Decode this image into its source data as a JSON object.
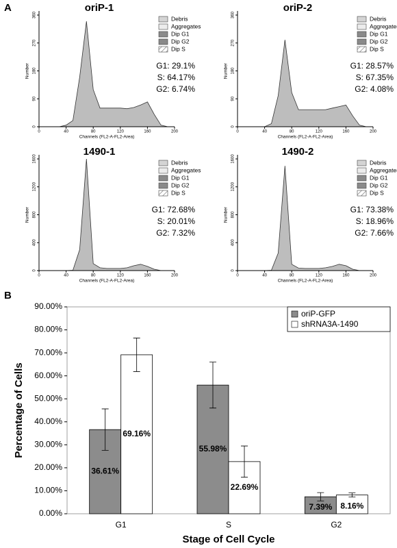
{
  "panel_labels": [
    "A",
    "B"
  ],
  "chart_data": [
    {
      "type": "area",
      "title": "oriP-1",
      "xlabel": "Channels (FL2-A-FL2-Area)",
      "ylabel": "Number",
      "x": [
        0,
        10,
        20,
        30,
        40,
        50,
        60,
        70,
        80,
        90,
        100,
        110,
        120,
        130,
        140,
        150,
        160,
        170,
        180,
        190,
        200
      ],
      "values": [
        0,
        0,
        0,
        0,
        5,
        20,
        160,
        340,
        120,
        60,
        60,
        60,
        60,
        58,
        62,
        70,
        80,
        40,
        5,
        0,
        0
      ],
      "xlim": [
        0,
        200
      ],
      "xticks": [
        0,
        40,
        80,
        120,
        160,
        200
      ],
      "ylim": [
        0,
        360
      ],
      "yticks": [
        0,
        90,
        180,
        270,
        360
      ],
      "legend": [
        {
          "name": "Debris",
          "color": "#d4d4d4"
        },
        {
          "name": "Aggregates",
          "color": "#ececec"
        },
        {
          "name": "Dip G1",
          "color": "#8a8a8a"
        },
        {
          "name": "Dip G2",
          "color": "#8a8a8a"
        },
        {
          "name": "Dip S",
          "color": "#ffffff",
          "pattern": "hatch"
        }
      ],
      "stats": [
        "G1: 29.1%",
        "S: 64.17%",
        "G2: 6.74%"
      ]
    },
    {
      "type": "area",
      "title": "oriP-2",
      "xlabel": "Channels (FL2-A-FL2-Area)",
      "ylabel": "Number",
      "x": [
        0,
        10,
        20,
        30,
        40,
        50,
        60,
        70,
        80,
        90,
        100,
        110,
        120,
        130,
        140,
        150,
        160,
        170,
        180,
        190,
        200
      ],
      "values": [
        0,
        0,
        0,
        0,
        0,
        10,
        100,
        280,
        110,
        55,
        55,
        55,
        55,
        55,
        60,
        65,
        70,
        35,
        5,
        0,
        0
      ],
      "xlim": [
        0,
        200
      ],
      "xticks": [
        0,
        40,
        80,
        120,
        160,
        200
      ],
      "ylim": [
        0,
        360
      ],
      "yticks": [
        0,
        90,
        180,
        270,
        360
      ],
      "legend": [
        {
          "name": "Debris",
          "color": "#d4d4d4"
        },
        {
          "name": "Aggregates",
          "color": "#ececec"
        },
        {
          "name": "Dip G1",
          "color": "#8a8a8a"
        },
        {
          "name": "Dip G2",
          "color": "#8a8a8a"
        },
        {
          "name": "Dip S",
          "color": "#ffffff",
          "pattern": "hatch"
        }
      ],
      "stats": [
        "G1: 28.57%",
        "S: 67.35%",
        "G2: 4.08%"
      ]
    },
    {
      "type": "area",
      "title": "1490-1",
      "xlabel": "Channels (FL2-A-FL2-Area)",
      "ylabel": "Number",
      "x": [
        0,
        10,
        20,
        30,
        40,
        50,
        60,
        70,
        80,
        90,
        100,
        110,
        120,
        130,
        140,
        150,
        160,
        170,
        180,
        190,
        200
      ],
      "values": [
        0,
        0,
        0,
        0,
        0,
        5,
        300,
        1600,
        100,
        40,
        30,
        30,
        30,
        40,
        70,
        90,
        60,
        20,
        0,
        0,
        0
      ],
      "xlim": [
        0,
        200
      ],
      "xticks": [
        0,
        40,
        80,
        120,
        160,
        200
      ],
      "ylim": [
        0,
        1600
      ],
      "yticks": [
        0,
        400,
        800,
        1200,
        1600
      ],
      "legend": [
        {
          "name": "Debris",
          "color": "#d4d4d4"
        },
        {
          "name": "Aggregates",
          "color": "#ececec"
        },
        {
          "name": "Dip G1",
          "color": "#8a8a8a"
        },
        {
          "name": "Dip G2",
          "color": "#8a8a8a"
        },
        {
          "name": "Dip S",
          "color": "#ffffff",
          "pattern": "hatch"
        }
      ],
      "stats": [
        "G1: 72.68%",
        "S: 20.01%",
        "G2: 7.32%"
      ]
    },
    {
      "type": "area",
      "title": "1490-2",
      "xlabel": "Channels (FL2-A-FL2-Area)",
      "ylabel": "Number",
      "x": [
        0,
        10,
        20,
        30,
        40,
        50,
        60,
        70,
        80,
        90,
        100,
        110,
        120,
        130,
        140,
        150,
        160,
        170,
        180,
        190,
        200
      ],
      "values": [
        0,
        0,
        0,
        0,
        0,
        5,
        250,
        1500,
        90,
        35,
        30,
        30,
        30,
        40,
        60,
        90,
        70,
        20,
        0,
        0,
        0
      ],
      "xlim": [
        0,
        200
      ],
      "xticks": [
        0,
        40,
        80,
        120,
        160,
        200
      ],
      "ylim": [
        0,
        1600
      ],
      "yticks": [
        0,
        400,
        800,
        1200,
        1600
      ],
      "legend": [
        {
          "name": "Debris",
          "color": "#d4d4d4"
        },
        {
          "name": "Aggregates",
          "color": "#ececec"
        },
        {
          "name": "Dip G1",
          "color": "#8a8a8a"
        },
        {
          "name": "Dip G2",
          "color": "#8a8a8a"
        },
        {
          "name": "Dip S",
          "color": "#ffffff",
          "pattern": "hatch"
        }
      ],
      "stats": [
        "G1: 73.38%",
        "S: 18.96%",
        "G2: 7.66%"
      ]
    },
    {
      "type": "bar",
      "xlabel": "Stage of Cell Cycle",
      "ylabel": "Percentage of Cells",
      "categories": [
        "G1",
        "S",
        "G2"
      ],
      "series": [
        {
          "name": "oriP-GFP",
          "color": "#8c8c8c",
          "values": [
            36.61,
            55.98,
            7.39
          ],
          "errors": [
            9.0,
            10.0,
            1.8
          ],
          "value_labels": [
            "36.61%",
            "55.98%",
            "7.39%"
          ]
        },
        {
          "name": "shRNA3A-1490",
          "color": "#ffffff",
          "values": [
            69.16,
            22.69,
            8.16
          ],
          "errors": [
            7.3,
            6.8,
            0.9
          ],
          "value_labels": [
            "69.16%",
            "22.69%",
            "8.16%"
          ]
        }
      ],
      "ylim": [
        0,
        90
      ],
      "yticks": [
        {
          "value": 0,
          "label": "0.00%"
        },
        {
          "value": 10,
          "label": "10.00%"
        },
        {
          "value": 20,
          "label": "20.00%"
        },
        {
          "value": 30,
          "label": "30.00%"
        },
        {
          "value": 40,
          "label": "40.00%"
        },
        {
          "value": 50,
          "label": "50.00%"
        },
        {
          "value": 60,
          "label": "60.00%"
        },
        {
          "value": 70,
          "label": "70.00%"
        },
        {
          "value": 80,
          "label": "80.00%"
        },
        {
          "value": 90,
          "label": "90.00%"
        }
      ],
      "legend": "top-right"
    }
  ]
}
